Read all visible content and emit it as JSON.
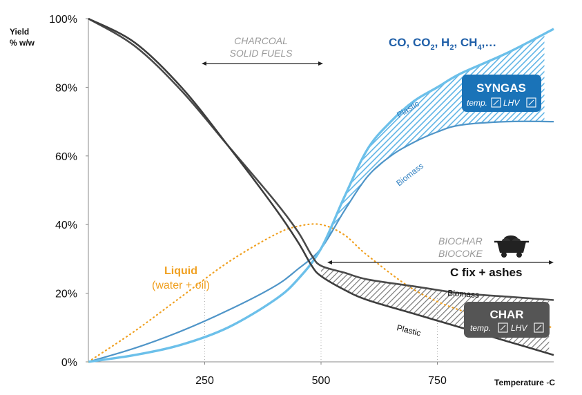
{
  "chart_data": {
    "type": "line",
    "ylabel_line1": "Yield",
    "ylabel_line2": "% w/w",
    "xlabel": "Temperature ◦C",
    "xlim": [
      0,
      1000
    ],
    "ylim": [
      0,
      100
    ],
    "xticks": [
      250,
      500,
      750
    ],
    "yticks": [
      0,
      20,
      40,
      60,
      80,
      100
    ],
    "ytick_labels": [
      "0%",
      "20%",
      "40%",
      "60%",
      "80%",
      "100%"
    ],
    "series": [
      {
        "key": "char_biomass",
        "name": "Biomass",
        "color": "#4a4a4a",
        "x": [
          0,
          100,
          200,
          300,
          400,
          450,
          480,
          500,
          550,
          600,
          700,
          800,
          900,
          1000
        ],
        "y": [
          100,
          92,
          79,
          63,
          47,
          38,
          31,
          28,
          26,
          24,
          22,
          20,
          19,
          18
        ]
      },
      {
        "key": "char_plastic",
        "name": "Plastic",
        "color": "#3d3d3d",
        "x": [
          0,
          100,
          200,
          300,
          400,
          450,
          480,
          500,
          550,
          600,
          700,
          800,
          900,
          1000
        ],
        "y": [
          100,
          93,
          80,
          63,
          45,
          35,
          28,
          25,
          21,
          18,
          14,
          10,
          6,
          2
        ]
      },
      {
        "key": "gas_biomass",
        "name": "Biomass",
        "color": "#4f95c8",
        "x": [
          0,
          100,
          200,
          300,
          400,
          450,
          500,
          550,
          600,
          650,
          700,
          750,
          800,
          900,
          1000
        ],
        "y": [
          0,
          4,
          9,
          15,
          22,
          27,
          33,
          44,
          54,
          60,
          64,
          67,
          69,
          70,
          70
        ]
      },
      {
        "key": "gas_plastic",
        "name": "Plastic",
        "color": "#6cc0ea",
        "x": [
          0,
          100,
          200,
          300,
          400,
          450,
          500,
          550,
          600,
          650,
          700,
          750,
          800,
          900,
          1000
        ],
        "y": [
          0,
          2,
          5,
          10,
          18,
          24,
          33,
          48,
          62,
          70,
          76,
          80,
          84,
          90,
          97
        ]
      },
      {
        "key": "liquid",
        "name": "Liquid",
        "color": "#f0a020",
        "x": [
          0,
          100,
          200,
          300,
          400,
          450,
          500,
          550,
          600,
          700,
          800,
          900,
          1000
        ],
        "y": [
          0,
          9,
          19,
          29,
          37,
          39.5,
          40,
          37,
          31,
          21,
          15,
          12,
          10
        ]
      }
    ],
    "syngas_band_x": [
      500,
      980
    ],
    "char_band_x": [
      500,
      990
    ]
  },
  "annotations": {
    "charcoal_line1": "CHARCOAL",
    "charcoal_line2": "SOLID FUELS",
    "gas_products_prefix": "CO, CO",
    "gas_products_sub1": "2",
    "gas_products_mid": ", H",
    "gas_products_sub2": "2",
    "gas_products_mid2": ", CH",
    "gas_products_sub3": "4",
    "gas_products_suffix": ",…",
    "plastic_gas_label": "Plastic",
    "biomass_gas_label": "Biomass",
    "biochar_line1": "BIOCHAR",
    "biochar_line2": "BIOCOKE",
    "cfix_label": "C fix + ashes",
    "biomass_char_label": "Biomass",
    "plastic_char_label": "Plastic",
    "liquid_line1": "Liquid",
    "liquid_line2": "(water + oil)"
  },
  "boxes": {
    "syngas": {
      "title": "SYNGAS",
      "sub1": "temp.",
      "sub2": "LHV",
      "color": "#1a73b8"
    },
    "char": {
      "title": "CHAR",
      "sub1": "temp.",
      "sub2": "LHV",
      "color": "#555555"
    }
  },
  "icons": {
    "cart": "coal-cart-icon",
    "arrow_up_right": "arrow-up-right-icon"
  }
}
